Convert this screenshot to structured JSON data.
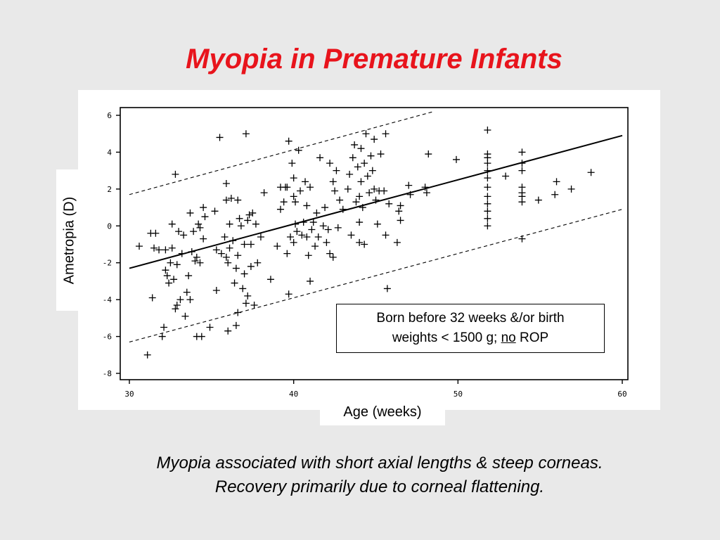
{
  "slide": {
    "title": "Myopia in Premature Infants",
    "caption_line1": "Myopia associated with short axial lengths & steep corneas.",
    "caption_line2": "Recovery primarily due to corneal flattening."
  },
  "legend": {
    "line1": "Born before 32 weeks &/or birth",
    "line2_prefix": "weights < 1500 g; ",
    "line2_underlined": "no",
    "line2_suffix": " ROP"
  },
  "colors": {
    "title": "#e8141c",
    "background": "#e9e9e9",
    "ink": "#000000"
  },
  "chart_data": {
    "type": "scatter",
    "xlabel": "Age (weeks)",
    "ylabel": "Ametropia (D)",
    "xlim": [
      30,
      60
    ],
    "ylim": [
      -8,
      6
    ],
    "xticks": [
      30,
      40,
      50,
      60
    ],
    "yticks": [
      -8,
      -6,
      -4,
      -2,
      0,
      2,
      4,
      6
    ],
    "grid": false,
    "marker": "plus",
    "regression": {
      "x": [
        30,
        60
      ],
      "y": [
        -2.3,
        4.9
      ]
    },
    "upper_bound": {
      "x": [
        30,
        48.5
      ],
      "y": [
        1.7,
        6.2
      ]
    },
    "lower_bound": {
      "x": [
        30,
        60
      ],
      "y": [
        -6.3,
        0.9
      ]
    },
    "points": [
      [
        30.6,
        -1.1
      ],
      [
        31.1,
        -7.0
      ],
      [
        31.3,
        -0.4
      ],
      [
        31.4,
        -3.9
      ],
      [
        31.5,
        -1.2
      ],
      [
        31.6,
        -0.4
      ],
      [
        31.8,
        -1.3
      ],
      [
        32.0,
        -6.0
      ],
      [
        32.1,
        -5.5
      ],
      [
        32.2,
        -1.3
      ],
      [
        32.2,
        -2.4
      ],
      [
        32.3,
        -2.7
      ],
      [
        32.4,
        -3.1
      ],
      [
        32.5,
        -2.0
      ],
      [
        32.6,
        0.1
      ],
      [
        32.6,
        -1.2
      ],
      [
        32.7,
        -2.9
      ],
      [
        32.8,
        -4.5
      ],
      [
        32.8,
        2.8
      ],
      [
        32.9,
        -2.1
      ],
      [
        32.9,
        -4.3
      ],
      [
        33.0,
        -0.3
      ],
      [
        33.1,
        -4.0
      ],
      [
        33.2,
        -1.5
      ],
      [
        33.3,
        -0.5
      ],
      [
        33.4,
        -4.9
      ],
      [
        33.5,
        -3.6
      ],
      [
        33.6,
        -2.7
      ],
      [
        33.7,
        -4.0
      ],
      [
        33.7,
        0.7
      ],
      [
        33.8,
        -1.4
      ],
      [
        33.9,
        -0.3
      ],
      [
        34.0,
        -1.9
      ],
      [
        34.1,
        -6.0
      ],
      [
        34.1,
        -1.7
      ],
      [
        34.2,
        0.1
      ],
      [
        34.3,
        -2.0
      ],
      [
        34.3,
        -0.1
      ],
      [
        34.4,
        -6.0
      ],
      [
        34.5,
        -0.7
      ],
      [
        34.5,
        1.0
      ],
      [
        34.6,
        0.5
      ],
      [
        34.9,
        -5.5
      ],
      [
        35.2,
        0.8
      ],
      [
        35.3,
        -1.3
      ],
      [
        35.3,
        -3.5
      ],
      [
        35.5,
        4.8
      ],
      [
        35.6,
        -1.5
      ],
      [
        35.8,
        -0.6
      ],
      [
        35.9,
        2.3
      ],
      [
        35.9,
        1.4
      ],
      [
        35.9,
        -1.7
      ],
      [
        36.0,
        -5.7
      ],
      [
        36.0,
        -2.0
      ],
      [
        36.1,
        0.1
      ],
      [
        36.1,
        -1.2
      ],
      [
        36.2,
        1.5
      ],
      [
        36.3,
        -0.8
      ],
      [
        36.4,
        -3.1
      ],
      [
        36.5,
        -2.3
      ],
      [
        36.5,
        -5.4
      ],
      [
        36.6,
        1.4
      ],
      [
        36.6,
        -4.7
      ],
      [
        36.6,
        -1.6
      ],
      [
        36.7,
        0.4
      ],
      [
        36.8,
        0.0
      ],
      [
        36.9,
        -3.4
      ],
      [
        37.0,
        -1.0
      ],
      [
        37.0,
        -2.6
      ],
      [
        37.1,
        -4.2
      ],
      [
        37.1,
        5.0
      ],
      [
        37.2,
        -3.8
      ],
      [
        37.2,
        0.3
      ],
      [
        37.3,
        0.6
      ],
      [
        37.4,
        -2.2
      ],
      [
        37.4,
        -1.0
      ],
      [
        37.5,
        0.7
      ],
      [
        37.6,
        -4.3
      ],
      [
        37.7,
        0.1
      ],
      [
        37.8,
        -2.0
      ],
      [
        38.0,
        -0.6
      ],
      [
        38.2,
        1.8
      ],
      [
        38.6,
        -2.9
      ],
      [
        39.0,
        -1.1
      ],
      [
        39.2,
        0.9
      ],
      [
        39.2,
        2.1
      ],
      [
        39.4,
        1.3
      ],
      [
        39.5,
        2.1
      ],
      [
        39.6,
        -1.5
      ],
      [
        39.6,
        2.1
      ],
      [
        39.7,
        -3.7
      ],
      [
        39.7,
        4.6
      ],
      [
        39.8,
        -0.6
      ],
      [
        39.9,
        3.4
      ],
      [
        40.0,
        -0.9
      ],
      [
        40.0,
        1.6
      ],
      [
        40.0,
        2.6
      ],
      [
        40.1,
        0.1
      ],
      [
        40.1,
        1.3
      ],
      [
        40.2,
        -0.3
      ],
      [
        40.3,
        4.1
      ],
      [
        40.4,
        1.9
      ],
      [
        40.5,
        -0.5
      ],
      [
        40.6,
        0.2
      ],
      [
        40.7,
        2.4
      ],
      [
        40.8,
        1.1
      ],
      [
        40.8,
        -0.6
      ],
      [
        40.9,
        -1.6
      ],
      [
        41.0,
        2.1
      ],
      [
        41.0,
        -3.0
      ],
      [
        41.1,
        -0.2
      ],
      [
        41.2,
        0.2
      ],
      [
        41.3,
        -1.1
      ],
      [
        41.4,
        0.7
      ],
      [
        41.5,
        -0.6
      ],
      [
        41.6,
        3.7
      ],
      [
        41.8,
        0.0
      ],
      [
        41.9,
        1.0
      ],
      [
        42.0,
        -0.9
      ],
      [
        42.1,
        -0.2
      ],
      [
        42.2,
        -1.5
      ],
      [
        42.2,
        3.4
      ],
      [
        42.4,
        -1.7
      ],
      [
        42.4,
        2.4
      ],
      [
        42.5,
        1.9
      ],
      [
        42.6,
        3.0
      ],
      [
        42.7,
        -0.1
      ],
      [
        42.8,
        1.4
      ],
      [
        43.0,
        0.9
      ],
      [
        43.3,
        2.0
      ],
      [
        43.4,
        2.8
      ],
      [
        43.5,
        -0.5
      ],
      [
        43.6,
        3.7
      ],
      [
        43.7,
        4.4
      ],
      [
        43.8,
        1.3
      ],
      [
        43.9,
        3.2
      ],
      [
        44.0,
        1.6
      ],
      [
        44.0,
        -0.9
      ],
      [
        44.0,
        0.2
      ],
      [
        44.1,
        2.4
      ],
      [
        44.1,
        4.2
      ],
      [
        44.2,
        1.0
      ],
      [
        44.3,
        3.4
      ],
      [
        44.3,
        -1.0
      ],
      [
        44.4,
        5.0
      ],
      [
        44.5,
        2.7
      ],
      [
        44.6,
        1.8
      ],
      [
        44.7,
        3.8
      ],
      [
        44.8,
        3.0
      ],
      [
        44.9,
        2.0
      ],
      [
        44.9,
        4.7
      ],
      [
        45.0,
        1.4
      ],
      [
        45.1,
        0.1
      ],
      [
        45.2,
        1.9
      ],
      [
        45.3,
        3.9
      ],
      [
        45.5,
        1.9
      ],
      [
        45.6,
        5.0
      ],
      [
        45.6,
        -0.5
      ],
      [
        45.7,
        -3.4
      ],
      [
        45.8,
        1.2
      ],
      [
        46.3,
        -0.9
      ],
      [
        46.4,
        0.8
      ],
      [
        46.5,
        0.3
      ],
      [
        46.5,
        1.1
      ],
      [
        47.0,
        2.2
      ],
      [
        47.1,
        1.7
      ],
      [
        48.0,
        2.1
      ],
      [
        48.1,
        1.8
      ],
      [
        48.2,
        3.9
      ],
      [
        49.9,
        3.6
      ],
      [
        51.8,
        5.2
      ],
      [
        51.8,
        3.9
      ],
      [
        51.8,
        3.4
      ],
      [
        51.8,
        3.0
      ],
      [
        51.8,
        2.6
      ],
      [
        51.8,
        2.1
      ],
      [
        51.8,
        1.6
      ],
      [
        51.8,
        1.2
      ],
      [
        51.8,
        0.8
      ],
      [
        51.8,
        0.4
      ],
      [
        51.8,
        0.0
      ],
      [
        51.8,
        3.7
      ],
      [
        52.9,
        2.7
      ],
      [
        53.9,
        4.0
      ],
      [
        53.9,
        3.4
      ],
      [
        53.9,
        3.0
      ],
      [
        53.9,
        2.1
      ],
      [
        53.9,
        1.8
      ],
      [
        53.9,
        1.6
      ],
      [
        53.9,
        1.3
      ],
      [
        53.9,
        -0.7
      ],
      [
        54.9,
        1.4
      ],
      [
        55.9,
        1.7
      ],
      [
        56.0,
        2.4
      ],
      [
        56.9,
        2.0
      ],
      [
        58.1,
        2.9
      ]
    ]
  }
}
